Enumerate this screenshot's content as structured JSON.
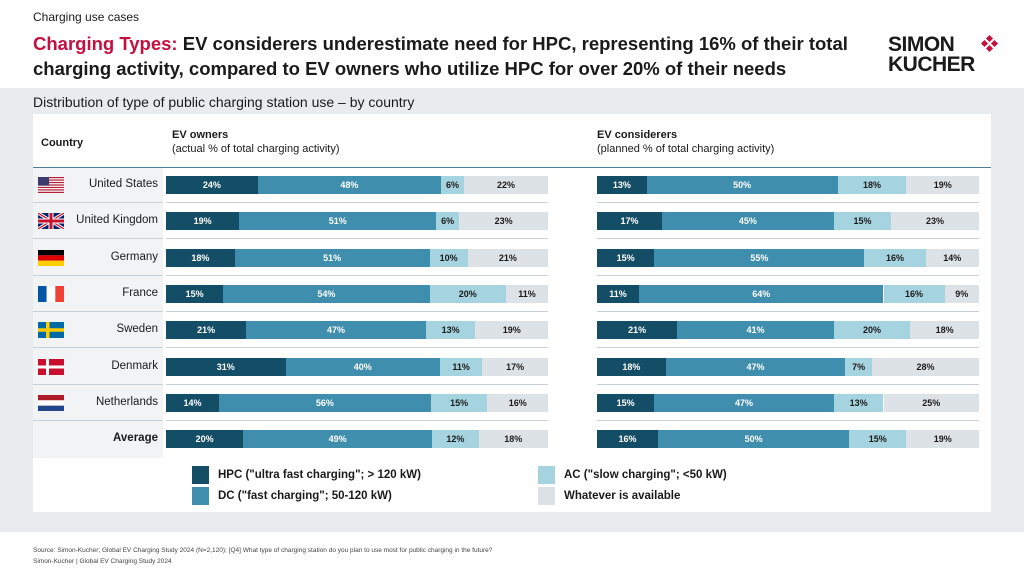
{
  "header": {
    "section_label": "Charging use cases",
    "headline_accent": "Charging Types:",
    "headline_rest": " EV considerers underestimate need for HPC, representing 16% of their total charging activity, compared to EV owners who utilize HPC for over 20% of their needs",
    "logo_line1": "SIMON",
    "logo_line2": "KUCHER"
  },
  "chart_data": {
    "type": "bar",
    "orientation": "horizontal",
    "stacked": true,
    "title": "Distribution of type of public charging station use – by country",
    "country_header": "Country",
    "categories": [
      "United States",
      "United Kingdom",
      "Germany",
      "France",
      "Sweden",
      "Denmark",
      "Netherlands",
      "Average"
    ],
    "segment_names": [
      "HPC (\"ultra fast charging\"; > 120 kW)",
      "DC (\"fast charging\"; 50-120 kW)",
      "AC (\"slow charging\"; <50 kW)",
      "Whatever is available"
    ],
    "segment_colors": [
      "#144e66",
      "#3f8ead",
      "#a6d3e0",
      "#dde2e6"
    ],
    "panels": [
      {
        "name": "EV owners",
        "subtitle": "(actual % of total charging activity)",
        "rows": [
          [
            24,
            48,
            6,
            22
          ],
          [
            19,
            51,
            6,
            23
          ],
          [
            18,
            51,
            10,
            21
          ],
          [
            15,
            54,
            20,
            11
          ],
          [
            21,
            47,
            13,
            19
          ],
          [
            31,
            40,
            11,
            17
          ],
          [
            14,
            56,
            15,
            16
          ],
          [
            20,
            49,
            12,
            18
          ]
        ]
      },
      {
        "name": "EV considerers",
        "subtitle": "(planned % of total charging activity)",
        "rows": [
          [
            13,
            50,
            18,
            19
          ],
          [
            17,
            45,
            15,
            23
          ],
          [
            15,
            55,
            16,
            14
          ],
          [
            11,
            64,
            16,
            9
          ],
          [
            21,
            41,
            20,
            18
          ],
          [
            18,
            47,
            7,
            28
          ],
          [
            15,
            47,
            13,
            25
          ],
          [
            16,
            50,
            15,
            19
          ]
        ]
      }
    ]
  },
  "legend": {
    "hpc": "HPC (\"ultra fast charging\"; > 120 kW)",
    "dc": "DC (\"fast charging\"; 50-120 kW)",
    "ac": "AC (\"slow charging\"; <50 kW)",
    "whatever": "Whatever is available"
  },
  "footer": {
    "source": "Source: Simon-Kucher; Global EV Charging Study 2024 (N=2,120); [Q4] What type of charging station do you plan to use most for public charging in the future?",
    "credit": "Simon-Kucher | Global EV Charging Study 2024"
  }
}
